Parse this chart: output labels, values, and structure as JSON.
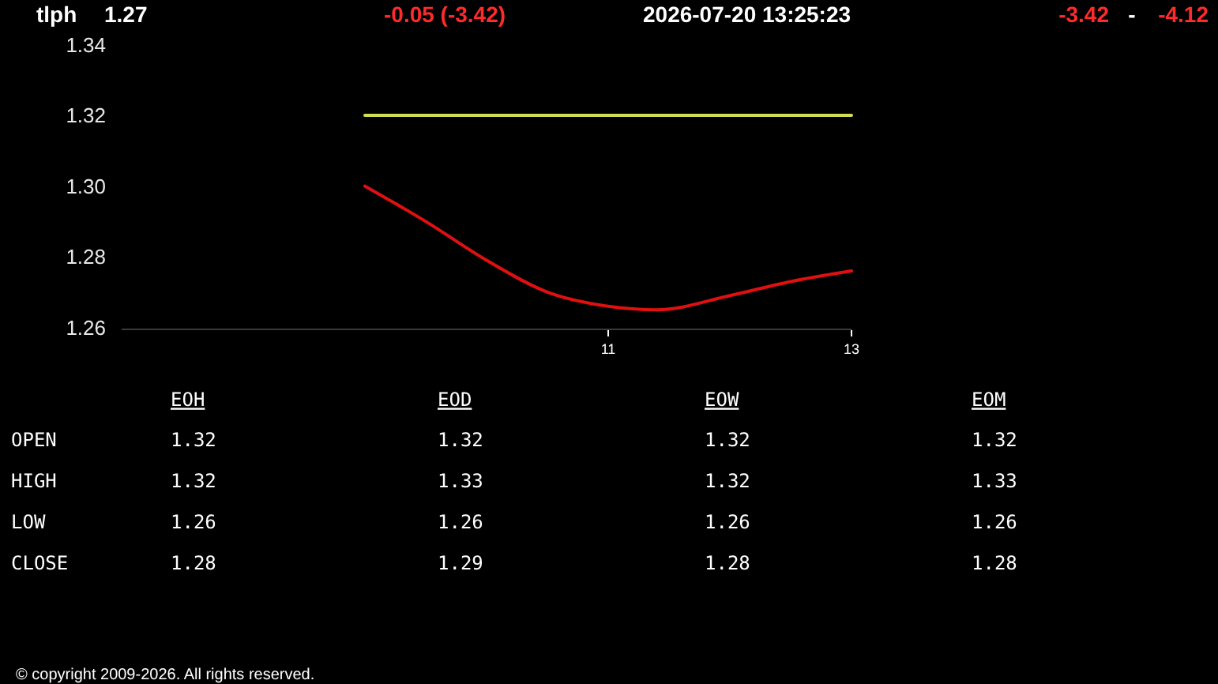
{
  "chart_data": [
    {
      "type": "line",
      "title": "tlph",
      "annotations": [
        "1.27",
        "-0.05 (-3.42)",
        "2026-07-20 13:25:23",
        "-3.42",
        "-",
        "-4.12"
      ],
      "series": [
        {
          "type": "line",
          "color": "#d2dc55",
          "x": [
            9,
            13
          ],
          "values": [
            1.32,
            1.32
          ]
        },
        {
          "type": "line",
          "color": "#e01010",
          "x": [
            9,
            9.5,
            10,
            10.5,
            11,
            11.4,
            12,
            12.5,
            13
          ],
          "values": [
            1.3,
            1.29,
            1.279,
            1.27,
            1.266,
            1.265,
            1.269,
            1.273,
            1.276
          ]
        }
      ],
      "xlim": [
        7,
        13
      ],
      "xticks": [
        11,
        13
      ],
      "ylim": [
        1.26,
        1.34
      ],
      "yticks": [
        1.26,
        1.28,
        {
          "value": 1.3,
          "label": "1.30"
        },
        1.32,
        1.34
      ]
    },
    {
      "type": "other",
      "categories": [
        "EOH",
        "EOD",
        "EOW",
        "EOM"
      ],
      "y_categories": [
        "OPEN",
        "HIGH",
        "LOW",
        "CLOSE"
      ],
      "cell_labels": [
        [
          "1.32",
          "1.32",
          "1.32",
          "1.32"
        ],
        [
          "1.32",
          "1.33",
          "1.32",
          "1.33"
        ],
        [
          "1.26",
          "1.26",
          "1.26",
          "1.26"
        ],
        [
          "1.28",
          "1.29",
          "1.28",
          "1.28"
        ]
      ],
      "annotations": [
        "© copyright 2009-2026. All rights reserved."
      ]
    }
  ]
}
